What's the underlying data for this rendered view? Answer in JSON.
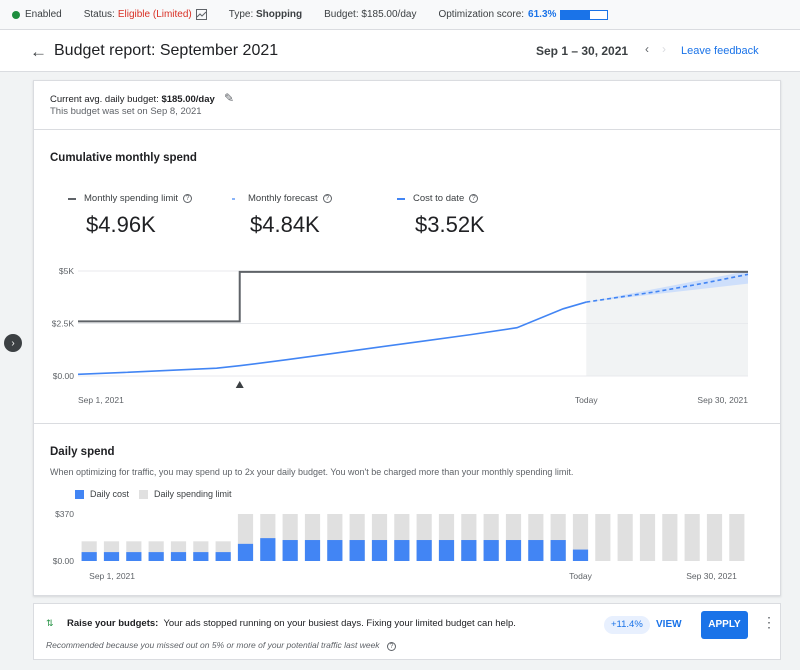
{
  "topbar": {
    "enabled": "Enabled",
    "status_label": "Status:",
    "status_value": "Eligible (Limited)",
    "type_label": "Type:",
    "type_value": "Shopping",
    "budget_label": "Budget:",
    "budget_value": "$185.00/day",
    "opt_label": "Optimization score:",
    "opt_value": "61.3%",
    "opt_fraction": 0.613
  },
  "header": {
    "title": "Budget report: September 2021",
    "date_range": "Sep 1 – 30, 2021",
    "feedback": "Leave feedback"
  },
  "budget": {
    "label": "Current avg. daily budget:",
    "value": "$185.00/day",
    "sub": "This budget was set on Sep 8, 2021"
  },
  "cumulative": {
    "title": "Cumulative monthly spend",
    "metrics": [
      {
        "label": "Monthly spending limit",
        "value": "$4.96K",
        "color": "#5f6368"
      },
      {
        "label": "Monthly forecast",
        "value": "$4.84K",
        "color": "#8ab4f8"
      },
      {
        "label": "Cost to date",
        "value": "$3.52K",
        "color": "#4285f4"
      }
    ]
  },
  "daily": {
    "title": "Daily spend",
    "desc": "When optimizing for traffic, you may spend up to 2x your daily budget. You won't be charged more than your monthly spending limit.",
    "legend_cost": "Daily cost",
    "legend_limit": "Daily spending limit"
  },
  "colors": {
    "accent": "#1a73e8",
    "cost": "#4285f4",
    "limit_bar": "#e0e0e0",
    "limit_line": "#5f6368",
    "forecast_band": "#c6dafc"
  },
  "chart_data": [
    {
      "type": "line",
      "title": "Cumulative monthly spend",
      "x_tick_labels": [
        "Sep 1, 2021",
        "Today",
        "Sep 30, 2021"
      ],
      "y_tick_labels": [
        "$0.00",
        "$2.5K",
        "$5K"
      ],
      "ylim": [
        0,
        5000
      ],
      "xlim": [
        1,
        30
      ],
      "today_day": 23,
      "budget_change_day": 8,
      "series": [
        {
          "name": "Monthly spending limit",
          "x": [
            1,
            8,
            8,
            30
          ],
          "y": [
            2600,
            2600,
            4960,
            4960
          ]
        },
        {
          "name": "Cost to date",
          "x": [
            1,
            3,
            5,
            7,
            8,
            10,
            12,
            14,
            16,
            18,
            20,
            22,
            23
          ],
          "y": [
            80,
            170,
            270,
            370,
            490,
            770,
            1070,
            1370,
            1670,
            1970,
            2300,
            3200,
            3520
          ]
        },
        {
          "name": "Monthly forecast",
          "x": [
            23,
            26,
            28,
            30
          ],
          "y": [
            3520,
            4010,
            4400,
            4840
          ]
        }
      ],
      "forecast_band": {
        "x": [
          23,
          30
        ],
        "lower": [
          3520,
          4400
        ],
        "upper": [
          3520,
          5000
        ]
      }
    },
    {
      "type": "bar",
      "title": "Daily spend",
      "x_tick_labels": [
        "Sep 1, 2021",
        "Today",
        "Sep 30, 2021"
      ],
      "y_tick_labels": [
        "$0.00",
        "$370"
      ],
      "ylim": [
        0,
        370
      ],
      "days": 30,
      "series": [
        {
          "name": "Daily cost",
          "values": [
            70,
            70,
            70,
            70,
            70,
            70,
            70,
            135,
            180,
            165,
            165,
            165,
            165,
            165,
            165,
            165,
            165,
            165,
            165,
            165,
            165,
            165,
            90,
            0,
            0,
            0,
            0,
            0,
            0,
            0
          ]
        },
        {
          "name": "Daily spending limit",
          "values": [
            155,
            155,
            155,
            155,
            155,
            155,
            155,
            370,
            370,
            370,
            370,
            370,
            370,
            370,
            370,
            370,
            370,
            370,
            370,
            370,
            370,
            370,
            370,
            370,
            370,
            370,
            370,
            370,
            370,
            370
          ]
        }
      ]
    }
  ],
  "recommendation": {
    "title": "Raise your budgets:",
    "text": "Your ads stopped running on your busiest days. Fixing your limited budget can help.",
    "sub": "Recommended because you missed out on 5% or more of your potential traffic last week",
    "uplift": "+11.4%",
    "view": "VIEW",
    "apply": "APPLY"
  }
}
